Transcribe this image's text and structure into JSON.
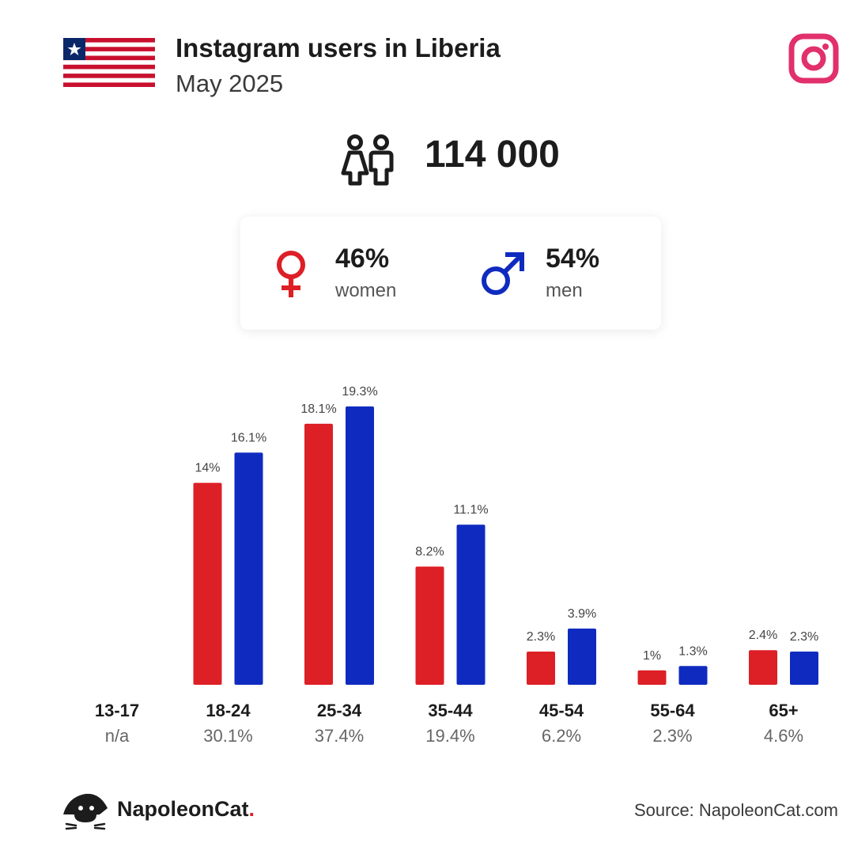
{
  "header": {
    "title": "Instagram users in Liberia",
    "subtitle": "May 2025"
  },
  "total": {
    "value": "114 000"
  },
  "gender": {
    "women": {
      "pct": "46%",
      "label": "women",
      "color": "#dd1f26"
    },
    "men": {
      "pct": "54%",
      "label": "men",
      "color": "#0f2bbf"
    }
  },
  "icons": {
    "flag": "liberia-flag-icon",
    "instagram": "instagram-icon",
    "users": "users-icon",
    "women": "female-symbol-icon",
    "men": "male-symbol-icon",
    "logo": "napoleoncat-logo-icon"
  },
  "chart_data": {
    "type": "bar",
    "categories": [
      "13-17",
      "18-24",
      "25-34",
      "35-44",
      "45-54",
      "55-64",
      "65+"
    ],
    "totals": [
      "n/a",
      "30.1%",
      "37.4%",
      "19.4%",
      "6.2%",
      "2.3%",
      "4.6%"
    ],
    "series": [
      {
        "values": [
          null,
          14,
          18.1,
          8.2,
          2.3,
          1,
          2.4
        ],
        "labels": [
          "",
          "14%",
          "18.1%",
          "8.2%",
          "2.3%",
          "1%",
          "2.4%"
        ],
        "color": "#dd1f26"
      },
      {
        "values": [
          null,
          16.1,
          19.3,
          11.1,
          3.9,
          1.3,
          2.3
        ],
        "labels": [
          "",
          "16.1%",
          "19.3%",
          "11.1%",
          "3.9%",
          "1.3%",
          "2.3%"
        ],
        "color": "#0f2bbf"
      }
    ],
    "title": "",
    "xlabel": "",
    "ylabel": "",
    "ylim": [
      0,
      19.3
    ],
    "grid": false
  },
  "footer": {
    "brand": "NapoleonCat",
    "brand_dot": ".",
    "source": "Source: NapoleonCat.com"
  }
}
